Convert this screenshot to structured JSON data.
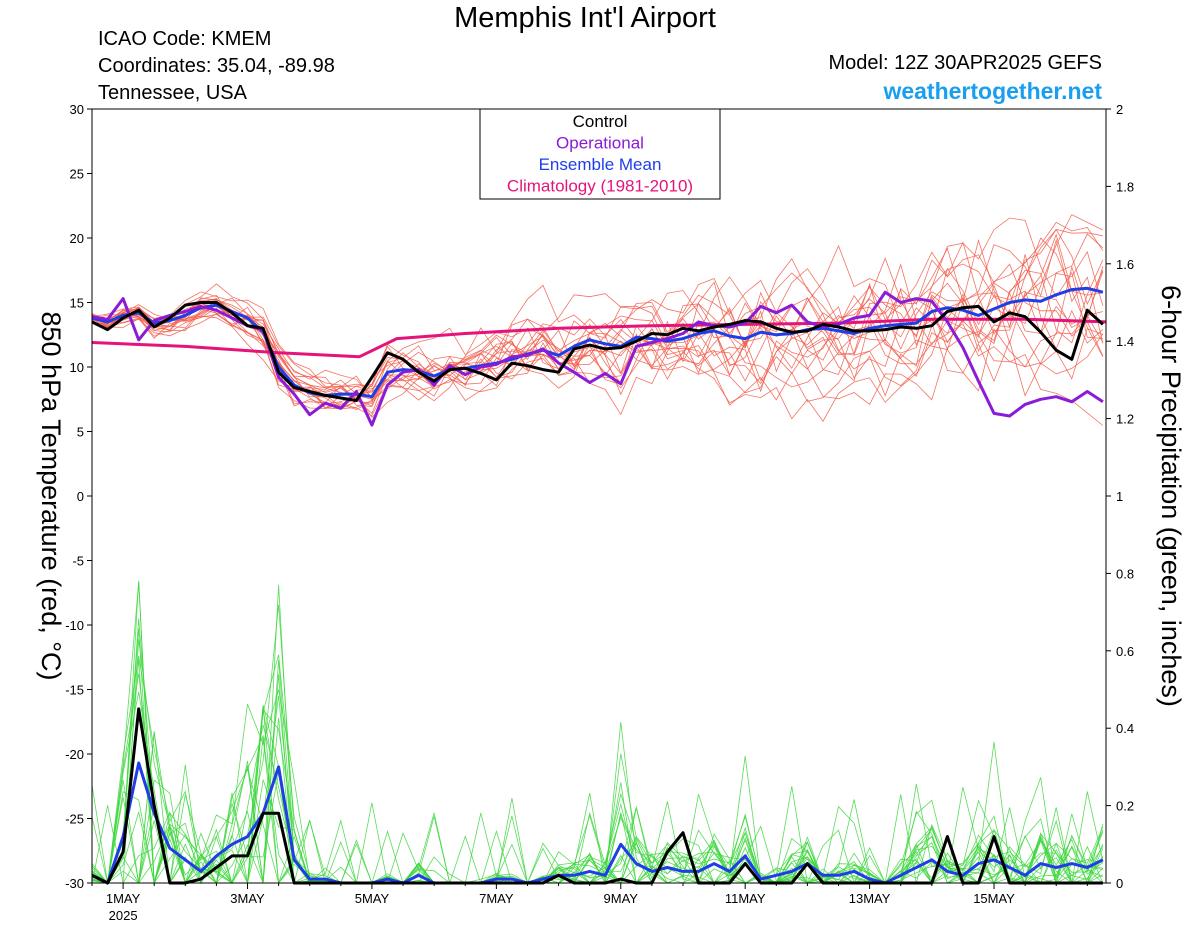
{
  "header": {
    "title": "Memphis Int'l Airport",
    "icao": "ICAO Code: KMEM",
    "coordinates": "Coordinates: 35.04, -89.98",
    "region": "Tennessee, USA",
    "model": "Model: 12Z 30APR2025 GEFS",
    "site": "weathertogether.net"
  },
  "chart_data": {
    "type": "line",
    "title": "Memphis Int'l Airport",
    "ylabel_left": "850 hPa Temperature (red, °C)",
    "ylabel_right": "6-hour Precipitation (green, inches)",
    "ylim_left": [
      -30,
      30
    ],
    "ylim_right": [
      0,
      2
    ],
    "yticks_left": [
      "30",
      "25",
      "20",
      "15",
      "10",
      "5",
      "0",
      "-5",
      "-10",
      "-15",
      "-20",
      "-25",
      "-30"
    ],
    "yticks_right": [
      "2",
      "1.8",
      "1.6",
      "1.4",
      "1.2",
      "1",
      "0.8",
      "0.6",
      "0.4",
      "0.2",
      "0"
    ],
    "x_range": [
      0.5,
      16.8
    ],
    "x_ticks": [
      {
        "x": 1,
        "label": "1MAY"
      },
      {
        "x": 3,
        "label": "3MAY"
      },
      {
        "x": 5,
        "label": "5MAY"
      },
      {
        "x": 7,
        "label": "7MAY"
      },
      {
        "x": 9,
        "label": "9MAY"
      },
      {
        "x": 11,
        "label": "11MAY"
      },
      {
        "x": 13,
        "label": "13MAY"
      },
      {
        "x": 15,
        "label": "15MAY"
      }
    ],
    "year_label": "2025",
    "legend": {
      "position": "top-center",
      "entries": [
        {
          "label": "Control",
          "color": "#000000"
        },
        {
          "label": "Operational",
          "color": "#8a1bd6"
        },
        {
          "label": "Ensemble Mean",
          "color": "#1f3ee8"
        },
        {
          "label": "Climatology (1981-2010)",
          "color": "#e4147a"
        }
      ]
    },
    "series": [
      {
        "name": "Climatology (1981-2010)",
        "axis": "left",
        "color": "#e4147a",
        "width": 3,
        "x": [
          0.5,
          2.0,
          3.5,
          4.8,
          5.4,
          6.5,
          8.0,
          9.5,
          11.0,
          12.5,
          14.0,
          15.5,
          16.8
        ],
        "y": [
          11.9,
          11.6,
          11.1,
          10.8,
          12.2,
          12.6,
          13.0,
          13.2,
          13.3,
          13.4,
          13.7,
          13.7,
          13.5
        ]
      },
      {
        "name": "Ensemble Mean",
        "axis": "left",
        "color": "#1f3ee8",
        "width": 3,
        "x": [
          0.5,
          0.75,
          1.0,
          1.25,
          1.5,
          1.75,
          2.0,
          2.25,
          2.5,
          2.75,
          3.0,
          3.25,
          3.5,
          3.75,
          4.0,
          4.25,
          4.5,
          4.75,
          5.0,
          5.25,
          5.5,
          5.75,
          6.0,
          6.25,
          6.5,
          6.75,
          7.0,
          7.25,
          7.5,
          7.75,
          8.0,
          8.25,
          8.5,
          8.75,
          9.0,
          9.25,
          9.5,
          9.75,
          10.0,
          10.25,
          10.5,
          10.75,
          11.0,
          11.25,
          11.5,
          11.75,
          12.0,
          12.25,
          12.5,
          12.75,
          13.0,
          13.25,
          13.5,
          13.75,
          14.0,
          14.25,
          14.5,
          14.75,
          15.0,
          15.25,
          15.5,
          15.75,
          16.0,
          16.25,
          16.5,
          16.75
        ],
        "y": [
          13.8,
          13.5,
          14.0,
          14.2,
          13.4,
          13.6,
          14.0,
          14.6,
          14.8,
          14.3,
          13.8,
          12.7,
          10.0,
          8.6,
          8.0,
          7.8,
          7.9,
          7.9,
          7.7,
          9.6,
          9.8,
          9.7,
          9.3,
          9.8,
          9.9,
          10.1,
          10.3,
          10.6,
          11.0,
          11.3,
          10.9,
          11.6,
          12.1,
          11.8,
          11.6,
          12.3,
          12.2,
          12.0,
          12.2,
          12.6,
          12.8,
          12.4,
          12.2,
          12.7,
          12.5,
          12.6,
          12.9,
          13.0,
          12.8,
          12.6,
          13.0,
          13.2,
          13.3,
          13.4,
          14.3,
          14.6,
          14.4,
          14.0,
          14.5,
          15.0,
          15.2,
          15.1,
          15.6,
          16.0,
          16.1,
          15.8
        ]
      },
      {
        "name": "Operational",
        "axis": "left",
        "color": "#8a1bd6",
        "width": 3,
        "x": [
          0.5,
          0.75,
          1.0,
          1.25,
          1.5,
          1.75,
          2.0,
          2.25,
          2.5,
          2.75,
          3.0,
          3.25,
          3.5,
          3.75,
          4.0,
          4.25,
          4.5,
          4.75,
          5.0,
          5.25,
          5.5,
          5.75,
          6.0,
          6.25,
          6.5,
          6.75,
          7.0,
          7.25,
          7.5,
          7.75,
          8.0,
          8.25,
          8.5,
          8.75,
          9.0,
          9.25,
          9.5,
          9.75,
          10.0,
          10.25,
          10.5,
          10.75,
          11.0,
          11.25,
          11.5,
          11.75,
          12.0,
          12.25,
          12.5,
          12.75,
          13.0,
          13.25,
          13.5,
          13.75,
          14.0,
          14.25,
          14.5,
          14.75,
          15.0,
          15.25,
          15.5,
          15.75,
          16.0,
          16.25,
          16.5,
          16.75
        ],
        "y": [
          13.9,
          13.7,
          15.3,
          12.1,
          13.6,
          14.0,
          14.3,
          14.7,
          14.4,
          13.8,
          13.2,
          12.9,
          9.2,
          7.9,
          6.3,
          7.2,
          6.8,
          8.1,
          5.5,
          8.6,
          9.6,
          9.8,
          8.6,
          10.1,
          9.4,
          10.0,
          10.2,
          10.8,
          10.9,
          11.4,
          10.3,
          9.6,
          8.8,
          9.5,
          8.7,
          11.6,
          11.9,
          12.2,
          12.6,
          13.5,
          13.2,
          13.1,
          13.4,
          14.7,
          14.2,
          14.8,
          13.5,
          13.1,
          13.3,
          13.8,
          14.0,
          15.8,
          15.0,
          15.3,
          15.1,
          13.5,
          11.5,
          8.9,
          6.4,
          6.2,
          7.1,
          7.5,
          7.7,
          7.3,
          8.1,
          7.3
        ]
      },
      {
        "name": "Control",
        "axis": "left",
        "color": "#000000",
        "width": 3,
        "x": [
          0.5,
          0.75,
          1.0,
          1.25,
          1.5,
          1.75,
          2.0,
          2.25,
          2.5,
          2.75,
          3.0,
          3.25,
          3.5,
          3.75,
          4.0,
          4.25,
          4.5,
          4.75,
          5.0,
          5.25,
          5.5,
          5.75,
          6.0,
          6.25,
          6.5,
          6.75,
          7.0,
          7.25,
          7.5,
          7.75,
          8.0,
          8.25,
          8.5,
          8.75,
          9.0,
          9.25,
          9.5,
          9.75,
          10.0,
          10.25,
          10.5,
          10.75,
          11.0,
          11.25,
          11.5,
          11.75,
          12.0,
          12.25,
          12.5,
          12.75,
          13.0,
          13.25,
          13.5,
          13.75,
          14.0,
          14.25,
          14.5,
          14.75,
          15.0,
          15.25,
          15.5,
          15.75,
          16.0,
          16.25,
          16.5,
          16.75
        ],
        "y": [
          13.5,
          12.9,
          13.8,
          14.4,
          13.1,
          13.8,
          14.8,
          15.0,
          15.0,
          14.2,
          13.2,
          13.0,
          9.6,
          8.4,
          8.1,
          7.8,
          7.6,
          7.4,
          9.2,
          11.1,
          10.6,
          9.6,
          8.9,
          9.8,
          9.9,
          9.5,
          9.0,
          10.3,
          10.1,
          9.8,
          9.6,
          11.4,
          11.7,
          11.4,
          11.5,
          12.0,
          12.6,
          12.5,
          13.0,
          12.8,
          13.1,
          13.3,
          13.6,
          13.5,
          13.0,
          12.7,
          12.8,
          13.3,
          13.1,
          12.8,
          12.8,
          12.9,
          13.1,
          13.0,
          13.2,
          14.3,
          14.6,
          14.7,
          13.5,
          14.2,
          13.9,
          12.7,
          11.3,
          10.6,
          14.4,
          13.3
        ]
      },
      {
        "name": "Ensemble Mean",
        "axis": "right",
        "color": "#1f3ee8",
        "width": 3,
        "x": [
          0.5,
          0.75,
          1.0,
          1.25,
          1.5,
          1.75,
          2.0,
          2.25,
          2.5,
          2.75,
          3.0,
          3.25,
          3.5,
          3.75,
          4.0,
          4.25,
          4.5,
          4.75,
          5.0,
          5.25,
          5.5,
          5.75,
          6.0,
          6.25,
          6.5,
          6.75,
          7.0,
          7.25,
          7.5,
          7.75,
          8.0,
          8.25,
          8.5,
          8.75,
          9.0,
          9.25,
          9.5,
          9.75,
          10.0,
          10.25,
          10.5,
          10.75,
          11.0,
          11.25,
          11.5,
          11.75,
          12.0,
          12.25,
          12.5,
          12.75,
          13.0,
          13.25,
          13.5,
          13.75,
          14.0,
          14.25,
          14.5,
          14.75,
          15.0,
          15.25,
          15.5,
          15.75,
          16.0,
          16.25,
          16.5,
          16.75
        ],
        "y": [
          0.02,
          0.0,
          0.12,
          0.31,
          0.18,
          0.09,
          0.06,
          0.03,
          0.07,
          0.1,
          0.12,
          0.18,
          0.3,
          0.06,
          0.01,
          0.01,
          0.0,
          0.0,
          0.0,
          0.01,
          0.0,
          0.02,
          0.0,
          0.0,
          0.0,
          0.0,
          0.01,
          0.01,
          0.0,
          0.01,
          0.02,
          0.02,
          0.03,
          0.02,
          0.1,
          0.05,
          0.03,
          0.04,
          0.03,
          0.03,
          0.05,
          0.03,
          0.07,
          0.01,
          0.02,
          0.03,
          0.05,
          0.02,
          0.02,
          0.03,
          0.01,
          0.0,
          0.02,
          0.04,
          0.06,
          0.03,
          0.02,
          0.05,
          0.06,
          0.04,
          0.02,
          0.05,
          0.04,
          0.05,
          0.04,
          0.06
        ]
      },
      {
        "name": "Control",
        "axis": "right",
        "color": "#000000",
        "width": 3,
        "x": [
          0.5,
          0.75,
          1.0,
          1.25,
          1.5,
          1.75,
          2.0,
          2.25,
          2.5,
          2.75,
          3.0,
          3.25,
          3.5,
          3.75,
          4.0,
          4.25,
          4.5,
          4.75,
          5.0,
          5.25,
          5.5,
          5.75,
          6.0,
          6.25,
          6.5,
          6.75,
          7.0,
          7.25,
          7.5,
          7.75,
          8.0,
          8.25,
          8.5,
          8.75,
          9.0,
          9.25,
          9.5,
          9.75,
          10.0,
          10.25,
          10.5,
          10.75,
          11.0,
          11.25,
          11.5,
          11.75,
          12.0,
          12.25,
          12.5,
          12.75,
          13.0,
          13.25,
          13.5,
          13.75,
          14.0,
          14.25,
          14.5,
          14.75,
          15.0,
          15.25,
          15.5,
          15.75,
          16.0,
          16.25,
          16.5,
          16.75
        ],
        "y": [
          0.02,
          0.0,
          0.08,
          0.45,
          0.2,
          0.0,
          0.0,
          0.01,
          0.04,
          0.07,
          0.07,
          0.18,
          0.18,
          0.0,
          0.0,
          0.0,
          0.0,
          0.0,
          0.0,
          0.0,
          0.0,
          0.0,
          0.0,
          0.0,
          0.0,
          0.0,
          0.0,
          0.0,
          0.0,
          0.0,
          0.02,
          0.0,
          0.0,
          0.0,
          0.01,
          0.0,
          0.0,
          0.08,
          0.13,
          0.0,
          0.0,
          0.0,
          0.05,
          0.0,
          0.0,
          0.0,
          0.05,
          0.0,
          0.0,
          0.0,
          0.0,
          0.0,
          0.0,
          0.0,
          0.0,
          0.12,
          0.0,
          0.0,
          0.12,
          0.0,
          0.0,
          0.0,
          0.0,
          0.0,
          0.0,
          0.0
        ]
      }
    ]
  }
}
